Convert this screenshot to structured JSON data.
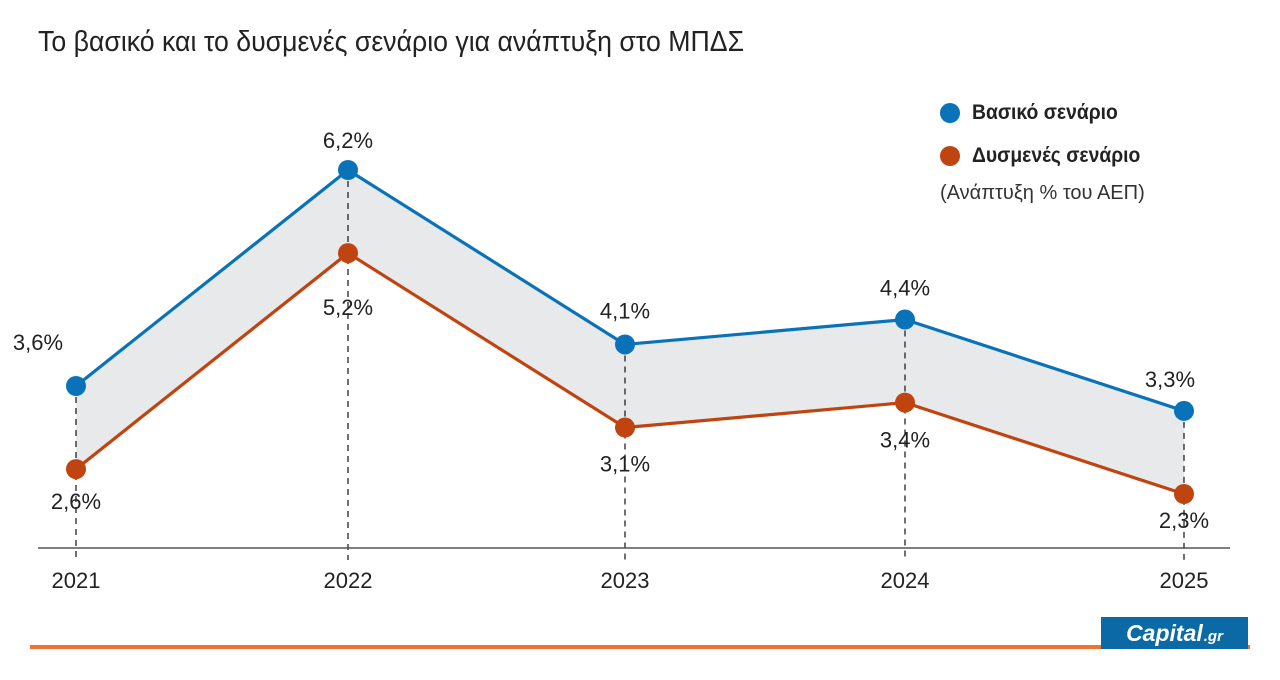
{
  "title": "Το βασικό και το δυσμενές σενάριο για ανάπτυξη στο ΜΠΔΣ",
  "legend": {
    "note": "(Ανάπτυξη % του ΑΕΠ)"
  },
  "colors": {
    "base": "#0a72b8",
    "adverse": "#c0440f",
    "band": "#e8e9ea",
    "accent": "#f07333",
    "brand_bg": "#0b6aa6"
  },
  "brand": {
    "name": "Capital",
    "tld": ".gr"
  },
  "chart_data": {
    "type": "line",
    "title": "Το βασικό και το δυσμενές σενάριο για ανάπτυξη στο ΜΠΔΣ",
    "categories": [
      "2021",
      "2022",
      "2023",
      "2024",
      "2025"
    ],
    "series": [
      {
        "name": "Βασικό σενάριο",
        "values": [
          3.6,
          6.2,
          4.1,
          4.4,
          3.3
        ],
        "labels": [
          "3,6%",
          "6,2%",
          "4,1%",
          "4,4%",
          "3,3%"
        ]
      },
      {
        "name": "Δυσμενές σενάριο",
        "values": [
          2.6,
          5.2,
          3.1,
          3.4,
          2.3
        ],
        "labels": [
          "2,6%",
          "5,2%",
          "3,1%",
          "3,4%",
          "2,3%"
        ]
      }
    ],
    "xlabel": "",
    "ylabel": "",
    "band_between_series": true,
    "legend_position": "top-right"
  }
}
